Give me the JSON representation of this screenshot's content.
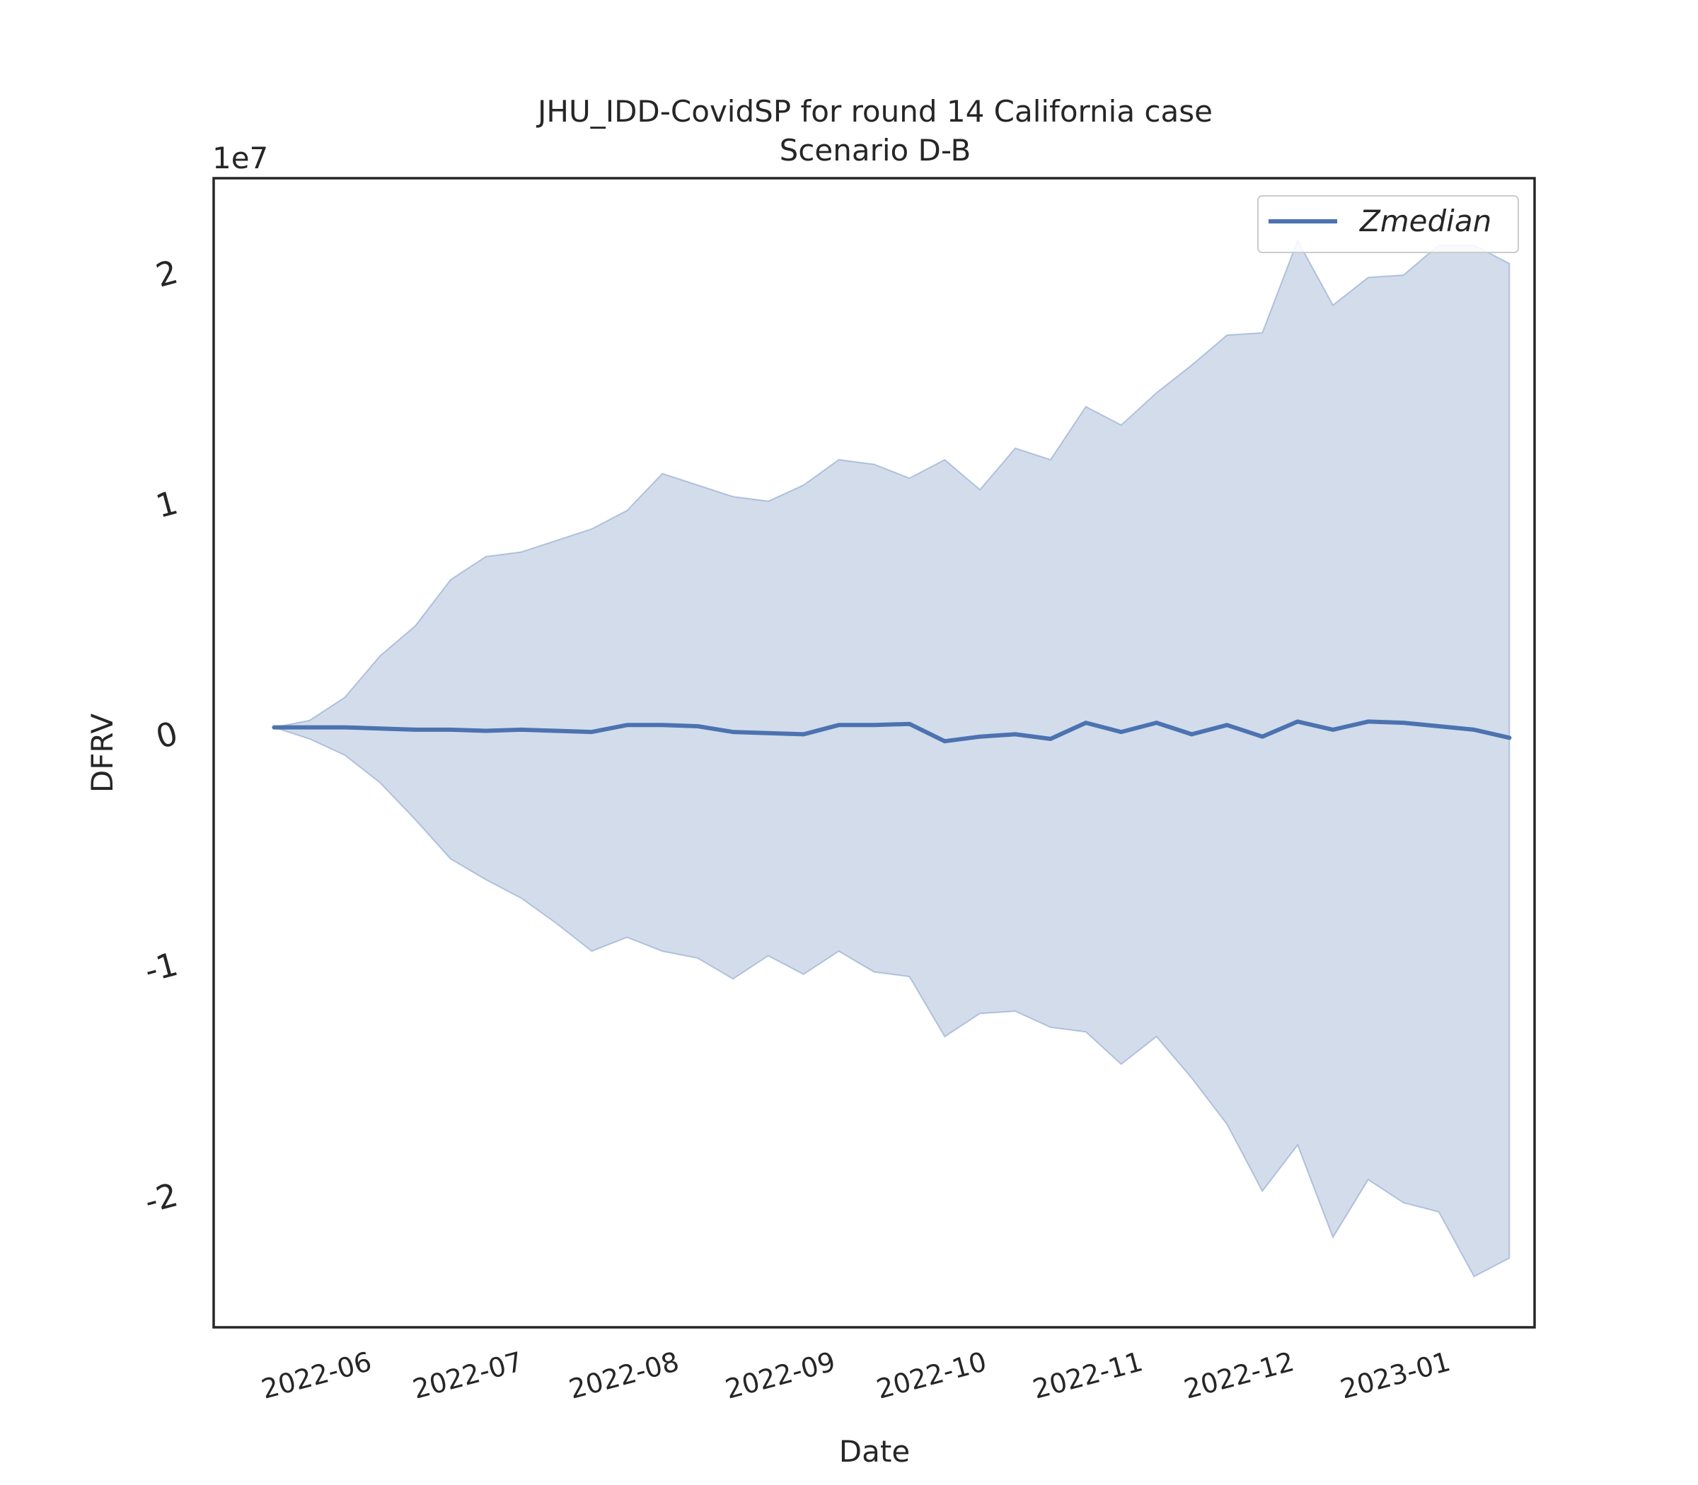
{
  "chart_data": {
    "type": "line",
    "title": "JHU_IDD-CovidSP for round 14 California case",
    "subtitle": "Scenario D-B",
    "xlabel": "Date",
    "ylabel": "DFRV",
    "y_scale_label": "1e7",
    "y_multiplier": 10000000,
    "ylim": [
      -2.58,
      2.4
    ],
    "xlim": [
      "2022-05-06",
      "2023-01-23"
    ],
    "x_ticks": [
      "2022-06-01",
      "2022-07-01",
      "2022-08-01",
      "2022-09-01",
      "2022-10-01",
      "2022-11-01",
      "2022-12-01",
      "2023-01-01"
    ],
    "x_tick_labels": [
      "2022-06",
      "2022-07",
      "2022-08",
      "2022-09",
      "2022-10",
      "2022-11",
      "2022-12",
      "2023-01"
    ],
    "y_ticks": [
      -2,
      -1,
      0,
      1,
      2
    ],
    "y_tick_labels": [
      "-2",
      "-1",
      "0",
      "1",
      "2"
    ],
    "grid": false,
    "legend_position": "top-right",
    "x": [
      "2022-05-18",
      "2022-05-25",
      "2022-06-01",
      "2022-06-08",
      "2022-06-15",
      "2022-06-22",
      "2022-06-29",
      "2022-07-06",
      "2022-07-13",
      "2022-07-20",
      "2022-07-27",
      "2022-08-03",
      "2022-08-10",
      "2022-08-17",
      "2022-08-24",
      "2022-08-31",
      "2022-09-07",
      "2022-09-14",
      "2022-09-21",
      "2022-09-28",
      "2022-10-05",
      "2022-10-12",
      "2022-10-19",
      "2022-10-26",
      "2022-11-02",
      "2022-11-09",
      "2022-11-16",
      "2022-11-23",
      "2022-11-30",
      "2022-12-07",
      "2022-12-14",
      "2022-12-21",
      "2022-12-28",
      "2023-01-04",
      "2023-01-11",
      "2023-01-18"
    ],
    "series": [
      {
        "name": "Zmedian",
        "color": "#4c72b0",
        "values": [
          0.02,
          0.02,
          0.02,
          0.015,
          0.01,
          0.01,
          0.005,
          0.01,
          0.005,
          0.0,
          0.03,
          0.03,
          0.025,
          0.0,
          -0.005,
          -0.01,
          0.03,
          0.03,
          0.035,
          -0.04,
          -0.02,
          -0.01,
          -0.03,
          0.04,
          0.0,
          0.04,
          -0.01,
          0.03,
          -0.02,
          0.045,
          0.01,
          0.045,
          0.04,
          0.025,
          0.01,
          -0.025
        ]
      }
    ],
    "band": {
      "color": "#4c72b0",
      "opacity": 0.25,
      "upper": [
        0.02,
        0.05,
        0.15,
        0.33,
        0.46,
        0.66,
        0.76,
        0.78,
        0.83,
        0.88,
        0.96,
        1.12,
        1.07,
        1.02,
        1.0,
        1.07,
        1.18,
        1.16,
        1.1,
        1.18,
        1.05,
        1.23,
        1.18,
        1.41,
        1.33,
        1.47,
        1.59,
        1.72,
        1.73,
        2.13,
        1.85,
        1.97,
        1.98,
        2.11,
        2.11,
        2.03
      ],
      "lower": [
        0.02,
        -0.03,
        -0.1,
        -0.22,
        -0.38,
        -0.55,
        -0.64,
        -0.72,
        -0.83,
        -0.95,
        -0.89,
        -0.95,
        -0.98,
        -1.07,
        -0.97,
        -1.05,
        -0.95,
        -1.04,
        -1.06,
        -1.32,
        -1.22,
        -1.21,
        -1.28,
        -1.3,
        -1.44,
        -1.32,
        -1.5,
        -1.7,
        -1.99,
        -1.79,
        -2.19,
        -1.94,
        -2.04,
        -2.08,
        -2.36,
        -2.28
      ]
    }
  }
}
